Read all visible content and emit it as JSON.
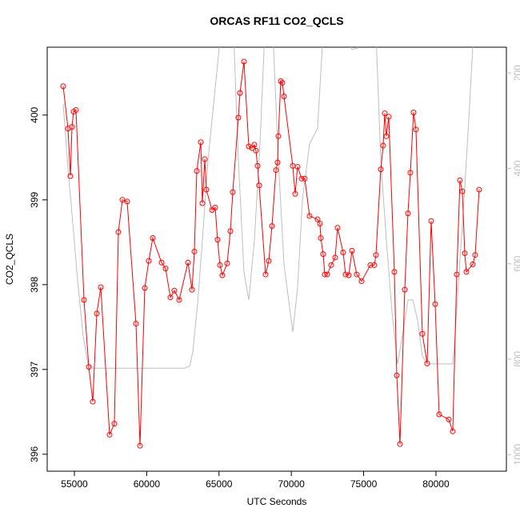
{
  "chart_data": {
    "type": "line",
    "title": "ORCAS RF11 CO2_QCLS",
    "x_label": "UTC Seconds",
    "y_label": "CO2_QCLS",
    "xlim": [
      53120,
      84870
    ],
    "xticks": [
      55000,
      60000,
      65000,
      70000,
      75000,
      80000
    ],
    "ylim": [
      395.8,
      400.8
    ],
    "yticks": [
      396,
      397,
      398,
      399,
      400
    ],
    "y2lim": [
      1035,
      146
    ],
    "y2ticks": [
      200,
      400,
      600,
      800,
      1000
    ],
    "series": [
      {
        "color": "#bebebe",
        "axis": "y2",
        "x": [
          54226,
          54558,
          54945,
          55221,
          55608,
          55940,
          56272,
          62577,
          62964,
          63186,
          63518,
          63850,
          64237,
          64679,
          65122,
          65454,
          66007,
          66339,
          66726,
          67058,
          67445,
          67832,
          68164,
          68440,
          68772,
          69104,
          69491,
          70100,
          70432,
          70764,
          71261,
          71814,
          72201,
          72809,
          74193,
          74580,
          75023,
          75852,
          76184,
          76571,
          76958,
          77345,
          77677,
          78064,
          78396,
          78728,
          79060,
          79392,
          81162,
          81273,
          81604,
          81936,
          82268,
          82600
        ],
        "values": [
          265,
          400,
          534,
          635,
          752,
          810,
          819,
          819,
          815,
          785,
          685,
          551,
          383,
          249,
          114,
          64,
          114,
          383,
          618,
          676,
          551,
          349,
          114,
          81,
          148,
          383,
          601,
          743,
          651,
          467,
          349,
          316,
          114,
          81,
          151,
          148,
          81,
          114,
          383,
          551,
          701,
          810,
          752,
          676,
          676,
          718,
          794,
          810,
          810,
          769,
          618,
          467,
          299,
          114
        ]
      },
      {
        "color": "#ff0000",
        "marker": "open-circle",
        "x": [
          54226,
          54558,
          54723,
          54834,
          54945,
          55111,
          55664,
          55996,
          56272,
          56549,
          56825,
          57434,
          57766,
          58042,
          58319,
          58650,
          59259,
          59535,
          59867,
          60144,
          60420,
          61029,
          61305,
          61637,
          61914,
          62246,
          62854,
          63131,
          63297,
          63462,
          63739,
          63850,
          64016,
          64126,
          64513,
          64735,
          64900,
          65066,
          65232,
          65564,
          65785,
          65951,
          66339,
          66449,
          66726,
          67058,
          67279,
          67445,
          67555,
          67666,
          67777,
          68219,
          68440,
          68662,
          68938,
          69049,
          69104,
          69270,
          69381,
          69492,
          70100,
          70266,
          70432,
          70708,
          70929,
          71261,
          71814,
          71980,
          72035,
          72201,
          72312,
          72478,
          72755,
          73031,
          73197,
          73584,
          73750,
          73971,
          74193,
          74524,
          74856,
          75465,
          75741,
          75852,
          76184,
          76350,
          76460,
          76571,
          76737,
          77124,
          77290,
          77511,
          77843,
          78064,
          78230,
          78451,
          78617,
          79060,
          79392,
          79668,
          79945,
          80221,
          80885,
          81162,
          81438,
          81659,
          81825,
          81991,
          82102,
          82544,
          82710,
          82987
        ],
        "values": [
          400.34,
          399.84,
          399.28,
          399.86,
          400.04,
          400.06,
          397.82,
          397.03,
          396.62,
          397.66,
          397.97,
          396.23,
          396.36,
          398.62,
          399.0,
          398.98,
          397.54,
          396.1,
          397.96,
          398.28,
          398.55,
          398.26,
          398.19,
          397.85,
          397.93,
          397.82,
          398.26,
          397.94,
          398.39,
          399.34,
          399.68,
          398.96,
          399.48,
          399.12,
          398.88,
          398.91,
          398.53,
          398.23,
          398.11,
          398.25,
          398.63,
          399.09,
          399.97,
          400.26,
          400.63,
          399.63,
          399.61,
          399.65,
          399.58,
          399.4,
          399.17,
          398.12,
          398.28,
          398.69,
          399.35,
          399.44,
          399.75,
          400.4,
          400.38,
          400.22,
          399.4,
          399.07,
          399.39,
          399.25,
          399.25,
          398.81,
          398.77,
          398.72,
          398.55,
          398.36,
          398.12,
          398.12,
          398.23,
          398.32,
          398.67,
          398.38,
          398.12,
          398.11,
          398.4,
          398.12,
          398.04,
          398.23,
          398.23,
          398.35,
          399.36,
          399.64,
          400.02,
          399.75,
          399.98,
          398.15,
          396.93,
          396.12,
          397.94,
          398.84,
          399.32,
          400.03,
          399.83,
          397.42,
          397.07,
          398.75,
          397.77,
          396.47,
          396.41,
          396.27,
          398.12,
          399.23,
          399.1,
          398.37,
          398.15,
          398.24,
          398.35,
          399.12
        ]
      }
    ]
  }
}
